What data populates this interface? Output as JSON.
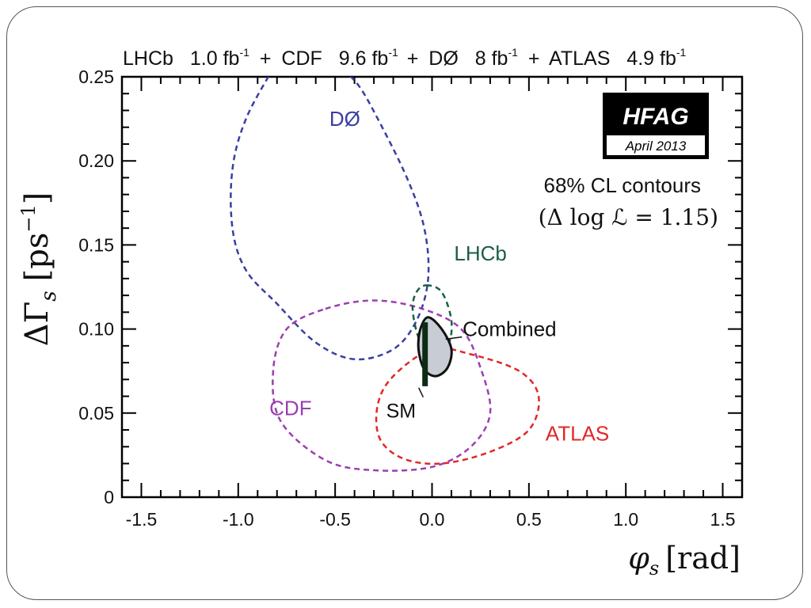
{
  "chart_data": {
    "type": "scatter",
    "title_parts": [
      {
        "name": "LHCb",
        "lumi": "1.0 fb",
        "sup": "-1",
        "plus": false
      },
      {
        "name": "CDF",
        "lumi": "9.6 fb",
        "sup": "-1",
        "plus": true
      },
      {
        "name": "DØ",
        "lumi": "8 fb",
        "sup": "-1",
        "plus": true
      },
      {
        "name": "ATLAS",
        "lumi": "4.9 fb",
        "sup": "-1",
        "plus": true
      }
    ],
    "xlabel": {
      "symbol": "φ",
      "sub": "s",
      "unit": "[rad]"
    },
    "ylabel": {
      "symbol": "ΔΓ",
      "sub": "s",
      "unit_open": "[ps",
      "unit_sup": "−1",
      "unit_close": "]"
    },
    "xlim": [
      -1.6,
      1.6
    ],
    "ylim": [
      0,
      0.25
    ],
    "x_ticks": [
      -1.5,
      -1.0,
      -0.5,
      0.0,
      0.5,
      1.0,
      1.5
    ],
    "x_tick_labels": [
      "-1.5",
      "-1.0",
      "-0.5",
      "0.0",
      "0.5",
      "1.0",
      "1.5"
    ],
    "y_ticks": [
      0,
      0.05,
      0.1,
      0.15,
      0.2,
      0.25
    ],
    "y_tick_labels": [
      "0",
      "0.05",
      "0.10",
      "0.15",
      "0.20",
      "0.25"
    ],
    "badge": {
      "title": "HFAG",
      "date": "April 2013"
    },
    "note_line1": "68% CL contours",
    "note_line2": "(Δ log ℒ = 1.15)",
    "contours": [
      {
        "label": "DØ",
        "color": "#3a3fa0",
        "label_pos": [
          -0.45,
          0.225
        ],
        "points": [
          [
            -0.82,
            0.255
          ],
          [
            -0.96,
            0.225
          ],
          [
            -1.03,
            0.195
          ],
          [
            -1.03,
            0.16
          ],
          [
            -0.96,
            0.135
          ],
          [
            -0.8,
            0.115
          ],
          [
            -0.6,
            0.092
          ],
          [
            -0.4,
            0.082
          ],
          [
            -0.2,
            0.088
          ],
          [
            -0.08,
            0.105
          ],
          [
            -0.02,
            0.13
          ],
          [
            -0.04,
            0.16
          ],
          [
            -0.13,
            0.19
          ],
          [
            -0.28,
            0.225
          ],
          [
            -0.38,
            0.245
          ],
          [
            -0.47,
            0.255
          ]
        ],
        "closed": false
      },
      {
        "label": "CDF",
        "color": "#9b3fb0",
        "label_pos": [
          -0.73,
          0.053
        ],
        "points": [
          [
            -0.55,
            0.112
          ],
          [
            -0.3,
            0.117
          ],
          [
            -0.05,
            0.112
          ],
          [
            0.15,
            0.1
          ],
          [
            0.25,
            0.077
          ],
          [
            0.3,
            0.05
          ],
          [
            0.2,
            0.03
          ],
          [
            0.0,
            0.018
          ],
          [
            -0.3,
            0.016
          ],
          [
            -0.55,
            0.022
          ],
          [
            -0.78,
            0.045
          ],
          [
            -0.82,
            0.075
          ],
          [
            -0.75,
            0.1
          ]
        ],
        "closed": true
      },
      {
        "label": "LHCb",
        "color": "#1a5e45",
        "label_pos": [
          0.25,
          0.145
        ],
        "points": [
          [
            -0.03,
            0.126
          ],
          [
            0.05,
            0.122
          ],
          [
            0.1,
            0.105
          ],
          [
            0.08,
            0.09
          ],
          [
            -0.01,
            0.085
          ],
          [
            -0.07,
            0.095
          ],
          [
            -0.1,
            0.112
          ],
          [
            -0.08,
            0.122
          ]
        ],
        "closed": true
      },
      {
        "label": "ATLAS",
        "color": "#e02828",
        "label_pos": [
          0.75,
          0.038
        ],
        "points": [
          [
            0.0,
            0.088
          ],
          [
            0.2,
            0.085
          ],
          [
            0.45,
            0.075
          ],
          [
            0.55,
            0.06
          ],
          [
            0.5,
            0.04
          ],
          [
            0.3,
            0.027
          ],
          [
            0.05,
            0.02
          ],
          [
            -0.15,
            0.023
          ],
          [
            -0.27,
            0.035
          ],
          [
            -0.28,
            0.055
          ],
          [
            -0.2,
            0.072
          ]
        ],
        "closed": true
      },
      {
        "label": "Combined",
        "color": "#111111",
        "fill": "#c8ccd4",
        "label_pos": [
          0.4,
          0.1
        ],
        "points": [
          [
            -0.02,
            0.107
          ],
          [
            0.05,
            0.1
          ],
          [
            0.1,
            0.088
          ],
          [
            0.08,
            0.077
          ],
          [
            0.02,
            0.072
          ],
          [
            -0.04,
            0.076
          ],
          [
            -0.07,
            0.088
          ],
          [
            -0.06,
            0.1
          ]
        ],
        "closed": true
      }
    ],
    "sm": {
      "label": "SM",
      "x": -0.036,
      "y_low": 0.066,
      "y_high": 0.104,
      "label_pos": [
        -0.16,
        0.051
      ]
    }
  }
}
